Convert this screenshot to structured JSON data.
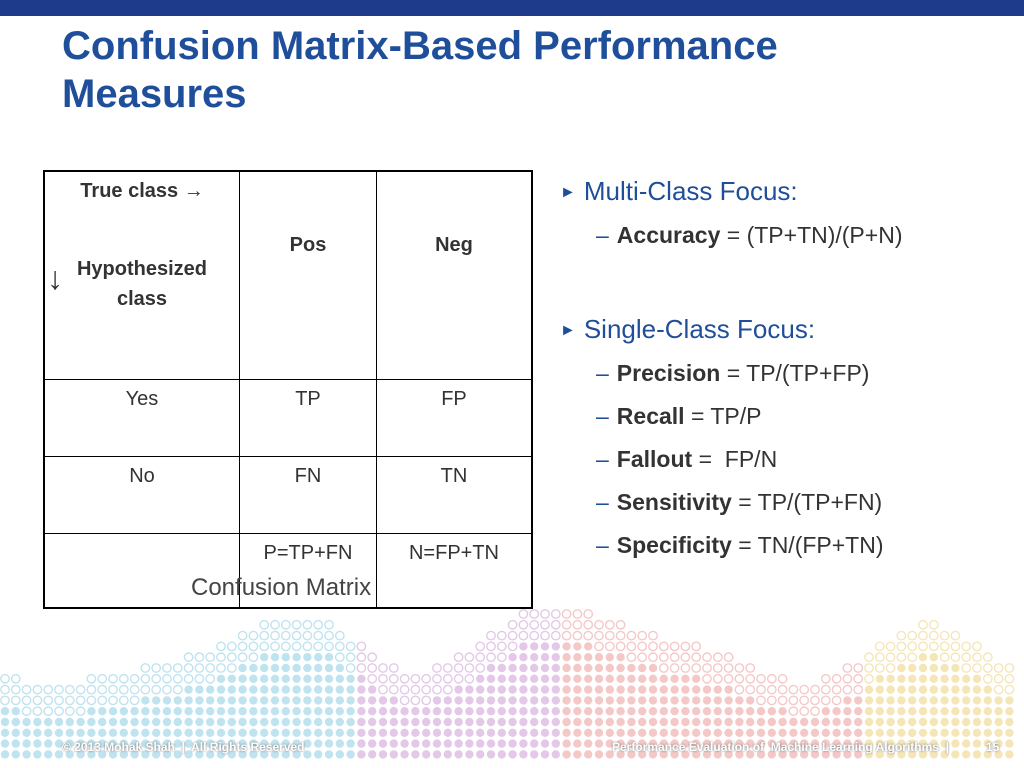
{
  "title": "Confusion Matrix-Based Performance Measures",
  "table": {
    "true_class": "True class →",
    "hypothesized": "Hypothesized class",
    "arrow": "↓",
    "col1": "Pos",
    "col2": "Neg",
    "rows": [
      {
        "label": "Yes",
        "pos": "TP",
        "neg": "FP"
      },
      {
        "label": "No",
        "pos": "FN",
        "neg": "TN"
      },
      {
        "label": "",
        "pos": "P=TP+FN",
        "neg": "N=FP+TN"
      }
    ]
  },
  "caption": "Confusion Matrix",
  "bullets": {
    "marker": "►",
    "dash": "–",
    "multi": "Multi-Class Focus:",
    "accuracy_term": "Accuracy",
    "accuracy_def": " = (TP+TN)/(P+N)",
    "single": "Single-Class Focus:",
    "precision_term": "Precision",
    "precision_def": " = TP/(TP+FP)",
    "recall_term": "Recall",
    "recall_def": " = TP/P",
    "fallout_term": "Fallout",
    "fallout_def": " =  FP/N",
    "sensitivity_term": "Sensitivity",
    "sensitivity_def": " = TP/(TP+FN)",
    "specificity_term": "Specificity",
    "specificity_def": " = TN/(FP+TN)"
  },
  "footer": {
    "copyright": "© 2013 Mohak Shah  |  All Rights Reserved",
    "course": "Performance Evaluation of  Machine Learning Algorithms  |",
    "page": "15"
  },
  "colors": {
    "title": "#1f4e9a",
    "top_bar": "#1e3a8a",
    "dots_left": "#bfe3ef",
    "dots_mid": "#e3c8e8",
    "dots_right": "#f5c8c8",
    "dots_far": "#f5e6b8"
  }
}
